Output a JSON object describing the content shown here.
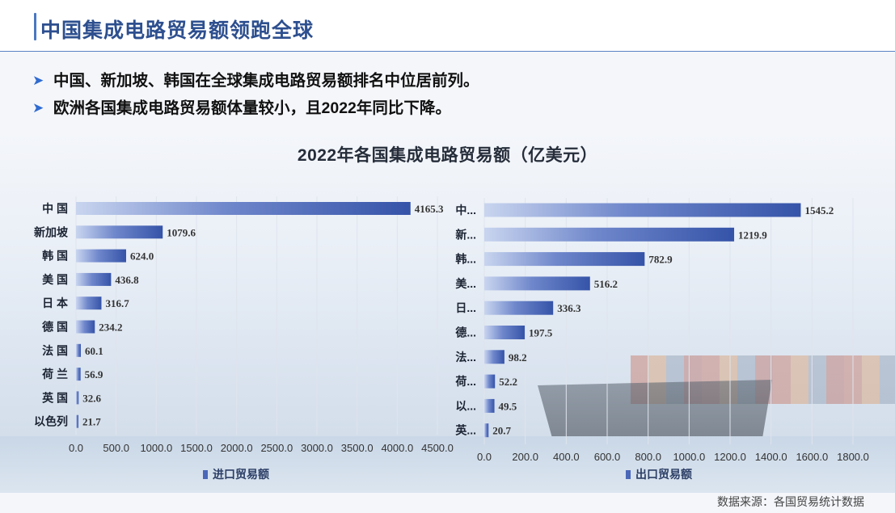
{
  "header": {
    "title": "中国集成电路贸易额领跑全球"
  },
  "bullets": [
    "中国、新加坡、韩国在全球集成电路贸易额排名中位居前列。",
    "欧洲各国集成电路贸易额体量较小，且2022年同比下降。"
  ],
  "footer": {
    "source": "数据来源：各国贸易统计数据"
  },
  "chart_data": [
    {
      "type": "bar",
      "orientation": "horizontal",
      "title": "2022年各国集成电路贸易额（亿美元）",
      "series": [
        {
          "name": "进口贸易额",
          "values": [
            4165.3,
            1079.6,
            624.0,
            436.8,
            316.7,
            234.2,
            60.1,
            56.9,
            32.6,
            21.7
          ]
        }
      ],
      "categories": [
        "中 国",
        "新加坡",
        "韩 国",
        "美 国",
        "日 本",
        "德 国",
        "法 国",
        "荷 兰",
        "英 国",
        "以色列"
      ],
      "value_labels": [
        "4165.3",
        "1079.6",
        "624.0",
        "436.8",
        "316.7",
        "234.2",
        "60.1",
        "56.9",
        "32.6",
        "21.7"
      ],
      "xlim": [
        0,
        4500
      ],
      "ticks": [
        "0.0",
        "500.0",
        "1000.0",
        "1500.0",
        "2000.0",
        "2500.0",
        "3000.0",
        "3500.0",
        "4000.0",
        "4500.0"
      ],
      "legend": "进口贸易额",
      "legend_position": "bottom",
      "grid": true,
      "bar_color": "#3553a8"
    },
    {
      "type": "bar",
      "orientation": "horizontal",
      "title": "2022年各国集成电路贸易额（亿美元）",
      "series": [
        {
          "name": "出口贸易额",
          "values": [
            1545.2,
            1219.9,
            782.9,
            516.2,
            336.3,
            197.5,
            98.2,
            52.2,
            49.5,
            20.7
          ]
        }
      ],
      "categories": [
        "中...",
        "新...",
        "韩...",
        "美...",
        "日...",
        "德...",
        "法...",
        "荷...",
        "以...",
        "英..."
      ],
      "value_labels": [
        "1545.2",
        "1219.9",
        "782.9",
        "516.2",
        "336.3",
        "197.5",
        "98.2",
        "52.2",
        "49.5",
        "20.7"
      ],
      "xlim": [
        0,
        1800
      ],
      "ticks": [
        "0.0",
        "200.0",
        "400.0",
        "600.0",
        "800.0",
        "1000.0",
        "1200.0",
        "1400.0",
        "1600.0",
        "1800.0"
      ],
      "legend": "出口贸易额",
      "legend_position": "bottom",
      "grid": true,
      "bar_color": "#3553a8"
    }
  ]
}
